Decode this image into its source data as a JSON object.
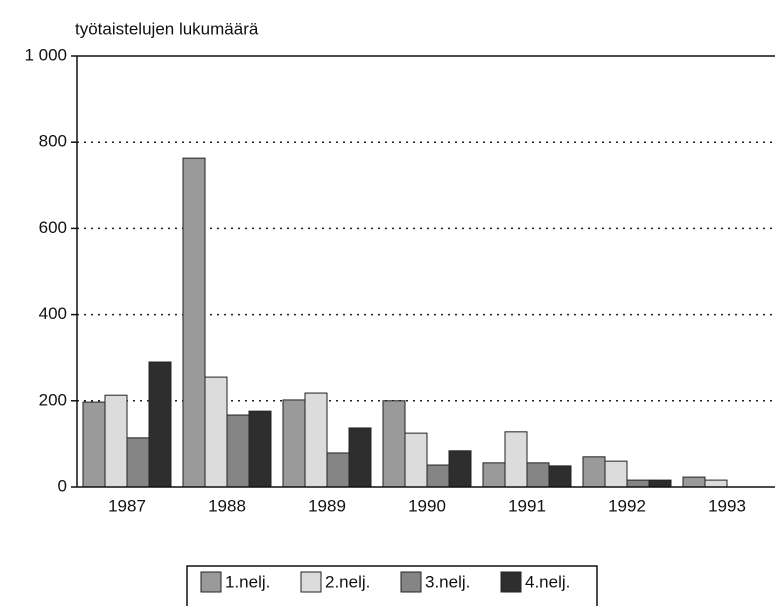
{
  "chart_data": {
    "type": "bar",
    "title": "työtaistelujen lukumäärä",
    "categories": [
      "1987",
      "1988",
      "1989",
      "1990",
      "1991",
      "1992",
      "1993"
    ],
    "series": [
      {
        "name": "1.nelj.",
        "color": "#9a9a9a",
        "values": [
          197,
          763,
          202,
          200,
          56,
          70,
          23
        ]
      },
      {
        "name": "2.nelj.",
        "color": "#dcdcdc",
        "values": [
          213,
          255,
          218,
          125,
          128,
          60,
          16
        ]
      },
      {
        "name": "3.nelj.",
        "color": "#858585",
        "values": [
          114,
          167,
          79,
          51,
          56,
          16,
          null
        ]
      },
      {
        "name": "4.nelj.",
        "color": "#2e2e2e",
        "values": [
          290,
          176,
          137,
          84,
          49,
          16,
          null
        ]
      }
    ],
    "ylim": [
      0,
      1000
    ],
    "yticks": [
      0,
      200,
      400,
      600,
      800,
      {
        "value": 1000,
        "label": "1 000"
      }
    ],
    "grid": true,
    "legend": "bottom"
  }
}
